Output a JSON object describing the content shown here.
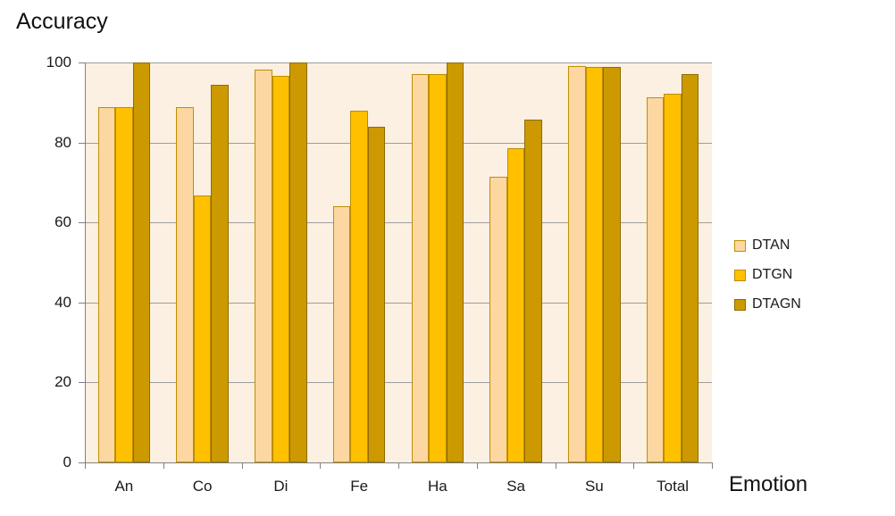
{
  "chart_data": {
    "type": "bar",
    "title": "Accuracy",
    "xlabel": "Emotion",
    "ylabel": "Accuracy",
    "categories": [
      "An",
      "Co",
      "Di",
      "Fe",
      "Ha",
      "Sa",
      "Su",
      "Total"
    ],
    "series": [
      {
        "name": "DTAN",
        "fill": "#FCD7A1",
        "border": "#BF8F00",
        "values": [
          88.9,
          88.9,
          98.3,
          64.0,
          97.1,
          71.4,
          99.0,
          91.4
        ]
      },
      {
        "name": "DTGN",
        "fill": "#FFC000",
        "border": "#BC8C00",
        "values": [
          88.9,
          66.7,
          96.6,
          88.0,
          97.1,
          78.6,
          98.8,
          92.3
        ]
      },
      {
        "name": "DTAGN",
        "fill": "#CC9A00",
        "border": "#8F6B00",
        "values": [
          100.0,
          94.4,
          100.0,
          84.0,
          100.0,
          85.7,
          98.8,
          97.2
        ]
      }
    ],
    "ylim": [
      0,
      100
    ],
    "yticks": [
      0,
      20,
      40,
      60,
      80,
      100
    ],
    "grid": true,
    "legend_position": "right",
    "colors": {
      "plot_background": "#FCF0E2",
      "gridline": "#9D9D9D",
      "axis": "#808080",
      "text": "#1A1A1A",
      "page_background": "#FFFFFF"
    }
  }
}
